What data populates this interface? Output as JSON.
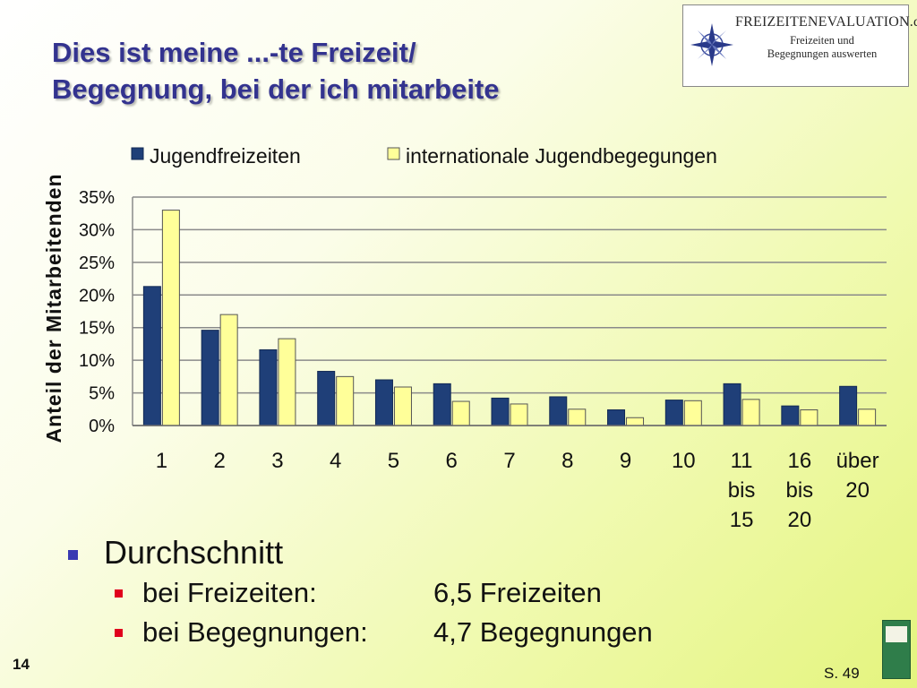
{
  "slide": {
    "title_line1": "Dies ist meine ...-te Freizeit/",
    "title_line2": "Begegnung, bei der ich mitarbeite",
    "page_number": "14",
    "reference": "S. 49"
  },
  "logo": {
    "brand": "FREIZEITENEVALUATION.de",
    "subtitle_line1": "Freizeiten und",
    "subtitle_line2": "Begegnungen auswerten",
    "icon": "compass-rose-icon"
  },
  "bullets": {
    "main": "Durchschnitt",
    "items": [
      {
        "label": "bei Freizeiten:",
        "value": "6,5 Freizeiten"
      },
      {
        "label": "bei Begegnungen:",
        "value": "4,7 Begegnungen"
      }
    ]
  },
  "chart_data": {
    "type": "bar",
    "ylabel": "Anteil der Mitarbeitenden",
    "xlabel": "",
    "ylim": [
      0,
      35
    ],
    "ytick_values": [
      0,
      5,
      10,
      15,
      20,
      25,
      30,
      35
    ],
    "ytick_labels": [
      "0%",
      "5%",
      "10%",
      "15%",
      "20%",
      "25%",
      "30%",
      "35%"
    ],
    "categories": [
      "1",
      "2",
      "3",
      "4",
      "5",
      "6",
      "7",
      "8",
      "9",
      "10",
      "11 bis 15",
      "16 bis 20",
      "über 20"
    ],
    "grid": true,
    "legend_position": "top",
    "series": [
      {
        "name": "Jugendfreizeiten",
        "color": "#1f3f78",
        "values": [
          21.3,
          14.6,
          11.6,
          8.3,
          7.0,
          6.4,
          4.2,
          4.4,
          2.4,
          3.9,
          6.4,
          3.0,
          6.0
        ]
      },
      {
        "name": "internationale Jugendbegegungen",
        "color": "#ffff99",
        "values": [
          33.0,
          17.0,
          13.3,
          7.5,
          5.9,
          3.7,
          3.3,
          2.5,
          1.2,
          3.8,
          4.0,
          2.4,
          2.5
        ]
      }
    ]
  }
}
